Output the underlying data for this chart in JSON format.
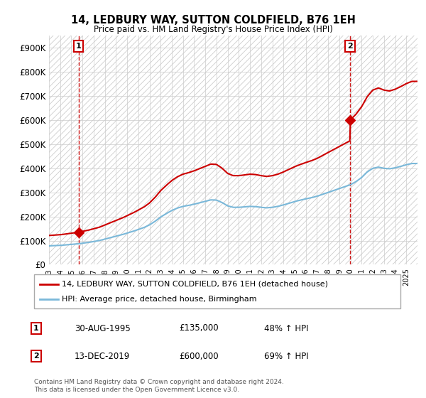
{
  "title": "14, LEDBURY WAY, SUTTON COLDFIELD, B76 1EH",
  "subtitle": "Price paid vs. HM Land Registry's House Price Index (HPI)",
  "ylim": [
    0,
    950000
  ],
  "yticks": [
    0,
    100000,
    200000,
    300000,
    400000,
    500000,
    600000,
    700000,
    800000,
    900000
  ],
  "ytick_labels": [
    "£0",
    "£100K",
    "£200K",
    "£300K",
    "£400K",
    "£500K",
    "£600K",
    "£700K",
    "£800K",
    "£900K"
  ],
  "background_color": "#ffffff",
  "sale1_date": 1995.66,
  "sale1_price": 135000,
  "sale2_date": 2019.95,
  "sale2_price": 600000,
  "hpi_line_color": "#7ab8d9",
  "sale_line_color": "#cc0000",
  "dot_color": "#cc0000",
  "dashed_line_color": "#cc0000",
  "legend_label_sale": "14, LEDBURY WAY, SUTTON COLDFIELD, B76 1EH (detached house)",
  "legend_label_hpi": "HPI: Average price, detached house, Birmingham",
  "sale1_annotation": "30-AUG-1995",
  "sale1_price_str": "£135,000",
  "sale1_pct": "48% ↑ HPI",
  "sale2_annotation": "13-DEC-2019",
  "sale2_price_str": "£600,000",
  "sale2_pct": "69% ↑ HPI",
  "footnote": "Contains HM Land Registry data © Crown copyright and database right 2024.\nThis data is licensed under the Open Government Licence v3.0.",
  "xmin": 1993.0,
  "xmax": 2026.0,
  "hpi_years": [
    1993.0,
    1993.5,
    1994.0,
    1994.5,
    1995.0,
    1995.5,
    1996.0,
    1996.5,
    1997.0,
    1997.5,
    1998.0,
    1998.5,
    1999.0,
    1999.5,
    2000.0,
    2000.5,
    2001.0,
    2001.5,
    2002.0,
    2002.5,
    2003.0,
    2003.5,
    2004.0,
    2004.5,
    2005.0,
    2005.5,
    2006.0,
    2006.5,
    2007.0,
    2007.5,
    2008.0,
    2008.5,
    2009.0,
    2009.5,
    2010.0,
    2010.5,
    2011.0,
    2011.5,
    2012.0,
    2012.5,
    2013.0,
    2013.5,
    2014.0,
    2014.5,
    2015.0,
    2015.5,
    2016.0,
    2016.5,
    2017.0,
    2017.5,
    2018.0,
    2018.5,
    2019.0,
    2019.5,
    2020.0,
    2020.5,
    2021.0,
    2021.5,
    2022.0,
    2022.5,
    2023.0,
    2023.5,
    2024.0,
    2024.5,
    2025.0,
    2025.5
  ],
  "hpi_values": [
    78000,
    79000,
    80000,
    82000,
    84000,
    86000,
    89000,
    92000,
    96000,
    100000,
    106000,
    112000,
    118000,
    124000,
    131000,
    138000,
    146000,
    154000,
    165000,
    180000,
    198000,
    212000,
    225000,
    235000,
    242000,
    246000,
    251000,
    257000,
    263000,
    269000,
    268000,
    258000,
    244000,
    238000,
    238000,
    240000,
    242000,
    241000,
    238000,
    236000,
    238000,
    242000,
    248000,
    255000,
    262000,
    268000,
    273000,
    278000,
    284000,
    292000,
    300000,
    308000,
    316000,
    324000,
    332000,
    345000,
    362000,
    385000,
    400000,
    405000,
    400000,
    398000,
    402000,
    408000,
    415000,
    420000
  ]
}
